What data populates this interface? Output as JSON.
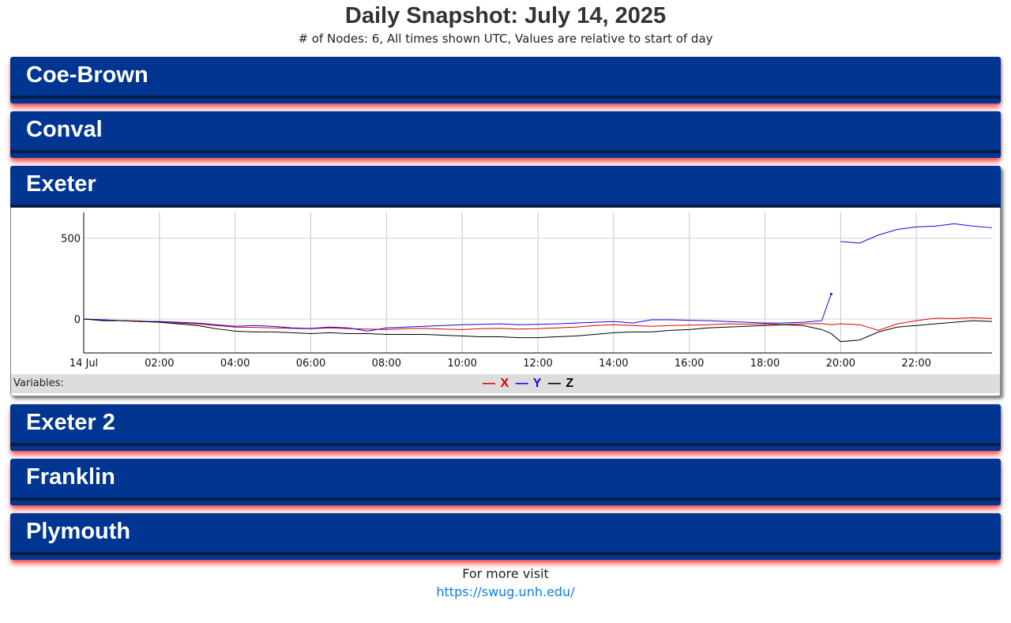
{
  "page": {
    "title": "Daily Snapshot: July 14, 2025",
    "subtitle": "# of Nodes: 6, All times shown UTC, Values are relative to start of day"
  },
  "nodes": [
    {
      "name": "Coe-Brown",
      "expanded": false
    },
    {
      "name": "Conval",
      "expanded": false
    },
    {
      "name": "Exeter",
      "expanded": true
    },
    {
      "name": "Exeter 2",
      "expanded": false
    },
    {
      "name": "Franklin",
      "expanded": false
    },
    {
      "name": "Plymouth",
      "expanded": false
    }
  ],
  "legend": {
    "label": "Variables:",
    "items": [
      {
        "name": "X",
        "color": "#e00000"
      },
      {
        "name": "Y",
        "color": "#2200dd"
      },
      {
        "name": "Z",
        "color": "#000000"
      }
    ]
  },
  "footer": {
    "text": "For more visit",
    "link": "https://swug.unh.edu/"
  },
  "chart_data": {
    "type": "line",
    "title": "",
    "xlabel": "",
    "ylabel": "",
    "x_ticks": [
      "14 Jul",
      "02:00",
      "04:00",
      "06:00",
      "08:00",
      "10:00",
      "12:00",
      "14:00",
      "16:00",
      "18:00",
      "20:00",
      "22:00"
    ],
    "y_ticks": [
      0,
      500
    ],
    "xlim": [
      0,
      24
    ],
    "ylim": [
      -210,
      660
    ],
    "grid": true,
    "legend_position": "bottom-center",
    "x_hours": [
      0,
      0.5,
      1,
      1.5,
      2,
      2.5,
      3,
      3.5,
      4,
      4.5,
      5,
      5.5,
      6,
      6.5,
      7,
      7.5,
      8,
      8.5,
      9,
      9.5,
      10,
      10.5,
      11,
      11.5,
      12,
      12.5,
      13,
      13.5,
      14,
      14.5,
      15,
      15.5,
      16,
      16.5,
      17,
      17.5,
      18,
      18.5,
      19,
      19.5,
      19.75,
      20,
      20.5,
      21,
      21.5,
      22,
      22.5,
      23,
      23.5,
      24
    ],
    "series": [
      {
        "name": "X",
        "color": "#e00000",
        "values": [
          0,
          -5,
          -10,
          -12,
          -20,
          -25,
          -30,
          -40,
          -50,
          -52,
          -55,
          -58,
          -60,
          -55,
          -60,
          -62,
          -65,
          -60,
          -58,
          -62,
          -65,
          -60,
          -58,
          -62,
          -60,
          -55,
          -50,
          -40,
          -35,
          -40,
          -45,
          -40,
          -38,
          -35,
          -30,
          -32,
          -30,
          -35,
          -30,
          -28,
          -35,
          -30,
          -35,
          -70,
          -30,
          -10,
          5,
          3,
          8,
          3
        ]
      },
      {
        "name": "Y",
        "color": "#2200dd",
        "values": [
          0,
          -5,
          -10,
          -15,
          -15,
          -20,
          -25,
          -35,
          -45,
          -40,
          -45,
          -55,
          -58,
          -50,
          -55,
          -75,
          -55,
          -50,
          -45,
          -40,
          -35,
          -33,
          -30,
          -35,
          -33,
          -30,
          -25,
          -20,
          -15,
          -25,
          -5,
          -5,
          -8,
          -10,
          -15,
          -20,
          -25,
          -25,
          -20,
          -10,
          155,
          480,
          470,
          520,
          555,
          570,
          575,
          590,
          575,
          565
        ]
      },
      {
        "name": "Z",
        "color": "#000000",
        "values": [
          0,
          -10,
          -10,
          -15,
          -20,
          -30,
          -40,
          -60,
          -75,
          -80,
          -80,
          -85,
          -90,
          -85,
          -90,
          -90,
          -95,
          -95,
          -95,
          -100,
          -105,
          -110,
          -110,
          -115,
          -115,
          -110,
          -105,
          -95,
          -85,
          -80,
          -80,
          -70,
          -65,
          -55,
          -50,
          -45,
          -40,
          -35,
          -40,
          -65,
          -90,
          -140,
          -130,
          -80,
          -50,
          -40,
          -30,
          -20,
          -10,
          -15
        ]
      }
    ]
  }
}
